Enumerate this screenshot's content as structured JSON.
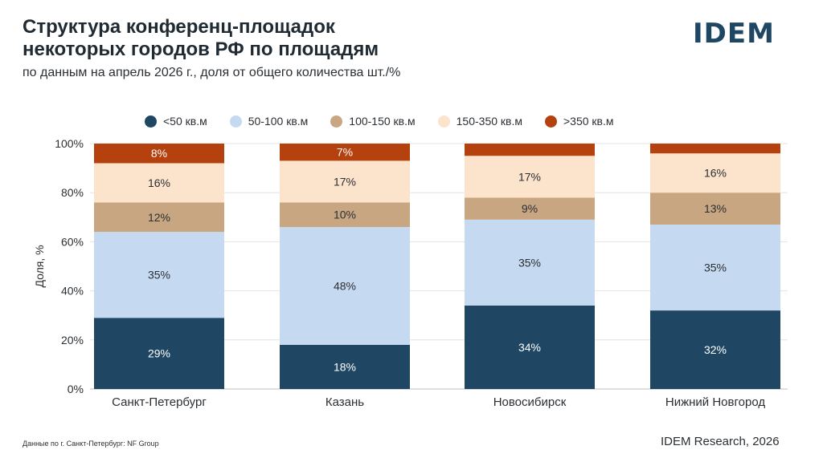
{
  "header": {
    "title_line1": "Структура конференц-площадок",
    "title_line2": "некоторых городов РФ по площадям",
    "subtitle": "по данным на апрель 2026 г., доля от общего количества шт./%"
  },
  "logo": {
    "text": "IDEM",
    "color": "#1f4763"
  },
  "footer": {
    "source": "Данные по г. Санкт-Петербург: NF Group",
    "credit": "IDEM Research, 2026"
  },
  "chart_data": {
    "type": "bar",
    "stacked": true,
    "ylabel": "Доля, %",
    "ylim": [
      0,
      100
    ],
    "yticks": [
      "0%",
      "20%",
      "40%",
      "60%",
      "80%",
      "100%"
    ],
    "categories": [
      "Санкт-Петербург",
      "Казань",
      "Новосибирск",
      "Нижний Новгород"
    ],
    "legend_position": "top",
    "series": [
      {
        "name": "<50 кв.м",
        "color": "#1f4763",
        "values": [
          29,
          18,
          34,
          32
        ],
        "labels": [
          "29%",
          "18%",
          "34%",
          "32%"
        ]
      },
      {
        "name": "50-100 кв.м",
        "color": "#c5d9f1",
        "values": [
          35,
          48,
          35,
          35
        ],
        "labels": [
          "35%",
          "48%",
          "35%",
          "35%"
        ]
      },
      {
        "name": "100-150 кв.м",
        "color": "#c8a682",
        "values": [
          12,
          10,
          9,
          13
        ],
        "labels": [
          "12%",
          "10%",
          "9%",
          "13%"
        ]
      },
      {
        "name": "150-350 кв.м",
        "color": "#fce3cc",
        "values": [
          16,
          17,
          17,
          16
        ],
        "labels": [
          "16%",
          "17%",
          "17%",
          "16%"
        ]
      },
      {
        "name": ">350 кв.м",
        "color": "#b5410f",
        "values": [
          8,
          7,
          5,
          4
        ],
        "labels": [
          "8%",
          "7%",
          "",
          ""
        ]
      }
    ]
  }
}
